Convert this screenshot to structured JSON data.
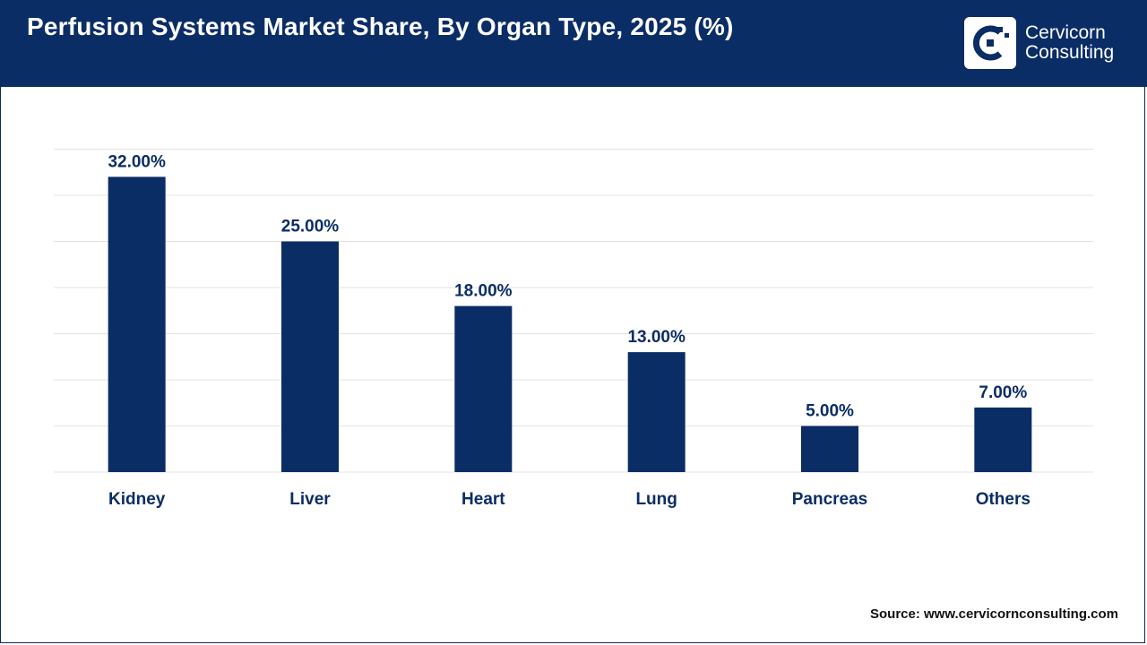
{
  "header": {
    "title": "Perfusion Systems Market Share, By Organ Type, 2025 (%)",
    "logo_line1": "Cervicorn",
    "logo_line2": "Consulting"
  },
  "footer": {
    "source": "Source: www.cervicornconsulting.com"
  },
  "colors": {
    "header_bg": "#0b2d66",
    "bar": "#0b2d66",
    "gridline": "#e3e3e3",
    "label": "#0b2d66"
  },
  "chart_data": {
    "type": "bar",
    "title": "Perfusion Systems Market Share, By Organ Type, 2025 (%)",
    "categories": [
      "Kidney",
      "Liver",
      "Heart",
      "Lung",
      "Pancreas",
      "Others"
    ],
    "values": [
      32,
      25,
      18,
      13,
      5,
      7
    ],
    "data_labels": [
      "32.00%",
      "25.00%",
      "18.00%",
      "13.00%",
      "5.00%",
      "7.00%"
    ],
    "xlabel": "",
    "ylabel": "",
    "ylim": [
      0,
      35
    ],
    "grid": true,
    "legend": "none"
  }
}
